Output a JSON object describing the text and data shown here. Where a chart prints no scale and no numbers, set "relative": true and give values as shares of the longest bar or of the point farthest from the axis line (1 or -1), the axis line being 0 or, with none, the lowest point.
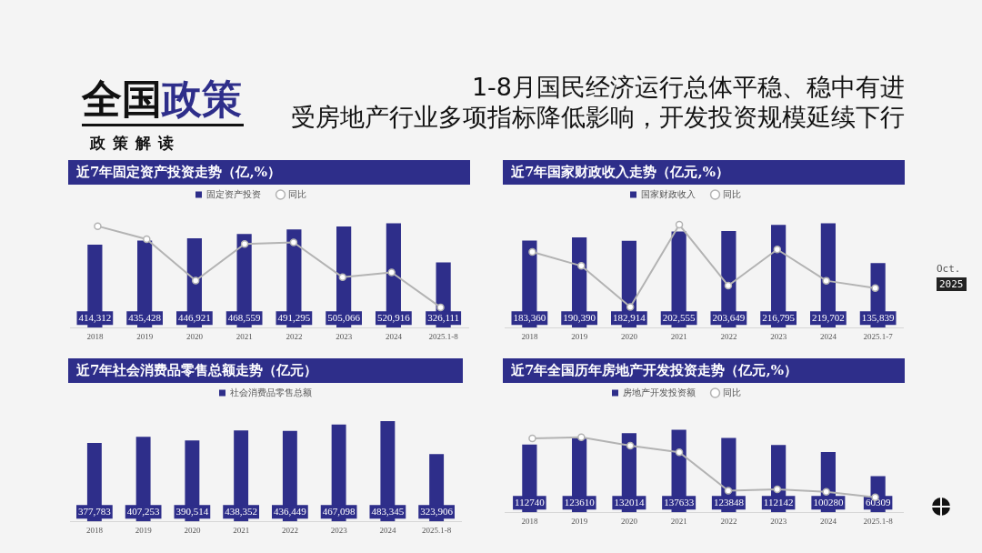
{
  "chart_data": [
    {
      "type": "other",
      "title": "全国政策",
      "subtitle": "政策解读",
      "annotations": [
        "1-8月国民经济运行总体平稳、稳中有进",
        "受房地产行业多项指标降低影响，开发投资规模延续下行",
        "Oct.",
        "2025"
      ]
    },
    {
      "type": "bar",
      "title": "近7年固定资产投资走势（亿,%）",
      "categories": [
        "2018",
        "2019",
        "2020",
        "2021",
        "2022",
        "2023",
        "2024",
        "2025.1-8"
      ],
      "series": [
        {
          "name": "固定资产投资",
          "color": "#2e2e8a",
          "values": [
            414312,
            435428,
            446921,
            468559,
            491295,
            505066,
            520916,
            326111
          ],
          "value_labels": [
            "414,312",
            "435,428",
            "446,921",
            "468,559",
            "491,295",
            "505,066",
            "520,916",
            "326,111"
          ]
        }
      ],
      "legend": "top",
      "tick_labels": "x"
    },
    {
      "type": "line",
      "categories": [
        "2018",
        "2019",
        "2020",
        "2021",
        "2022",
        "2023",
        "2024",
        "2025.1-8"
      ],
      "series": [
        {
          "name": "同比",
          "color": "#b3b3b3",
          "values": [
            1,
            0.84,
            0.33,
            0.78,
            0.8,
            0.37,
            0.43,
            0
          ]
        }
      ],
      "relative": true,
      "legend": "top",
      "marker": "circle",
      "tick_labels": false
    },
    {
      "type": "bar",
      "title": "近7年国家财政收入走势（亿元,%）",
      "categories": [
        "2018",
        "2019",
        "2020",
        "2021",
        "2022",
        "2023",
        "2024",
        "2025.1-7"
      ],
      "series": [
        {
          "name": "国家财政收入",
          "color": "#2e2e8a",
          "values": [
            183360,
            190390,
            182914,
            202555,
            203649,
            216795,
            219702,
            135839
          ],
          "value_labels": [
            "183,360",
            "190,390",
            "182,914",
            "202,555",
            "203,649",
            "216,795",
            "219,702",
            "135,839"
          ]
        }
      ],
      "legend": "top",
      "tick_labels": "x"
    },
    {
      "type": "line",
      "categories": [
        "2018",
        "2019",
        "2020",
        "2021",
        "2022",
        "2023",
        "2024",
        "2025.1-7"
      ],
      "series": [
        {
          "name": "同比",
          "color": "#b3b3b3",
          "values": [
            0.67,
            0.5,
            0,
            1,
            0.26,
            0.7,
            0.32,
            0.23
          ]
        }
      ],
      "relative": true,
      "legend": "top",
      "marker": "circle",
      "tick_labels": false
    },
    {
      "type": "bar",
      "title": "近7年社会消费品零售总额走势（亿元）",
      "categories": [
        "2018",
        "2019",
        "2020",
        "2021",
        "2022",
        "2023",
        "2024",
        "2025.1-8"
      ],
      "series": [
        {
          "name": "社会消费品零售总额",
          "color": "#2e2e8a",
          "values": [
            377783,
            407253,
            390514,
            438352,
            436449,
            467098,
            483345,
            323906
          ],
          "value_labels": [
            "377,783",
            "407,253",
            "390,514",
            "438,352",
            "436,449",
            "467,098",
            "483,345",
            "323,906"
          ]
        }
      ],
      "legend": "top",
      "tick_labels": "x"
    },
    {
      "type": "bar",
      "title": "近7年全国历年房地产开发投资走势（亿元,%）",
      "categories": [
        "2018",
        "2019",
        "2020",
        "2021",
        "2022",
        "2023",
        "2024",
        "2025.1-8"
      ],
      "series": [
        {
          "name": "房地产开发投资额",
          "color": "#2e2e8a",
          "values": [
            112740,
            123610,
            132014,
            137633,
            123848,
            112142,
            100280,
            60309
          ],
          "value_labels": [
            "112740",
            "123610",
            "132014",
            "137633",
            "123848",
            "112142",
            "100280",
            "60309"
          ]
        }
      ],
      "legend": "top",
      "tick_labels": "x"
    },
    {
      "type": "line",
      "categories": [
        "2018",
        "2019",
        "2020",
        "2021",
        "2022",
        "2023",
        "2024",
        "2025.1-8"
      ],
      "series": [
        {
          "name": "同比",
          "color": "#b3b3b3",
          "values": [
            0.98,
            1,
            0.86,
            0.75,
            0.11,
            0.13,
            0.09,
            0
          ]
        }
      ],
      "relative": true,
      "legend": "top",
      "marker": "circle",
      "tick_labels": false
    }
  ]
}
